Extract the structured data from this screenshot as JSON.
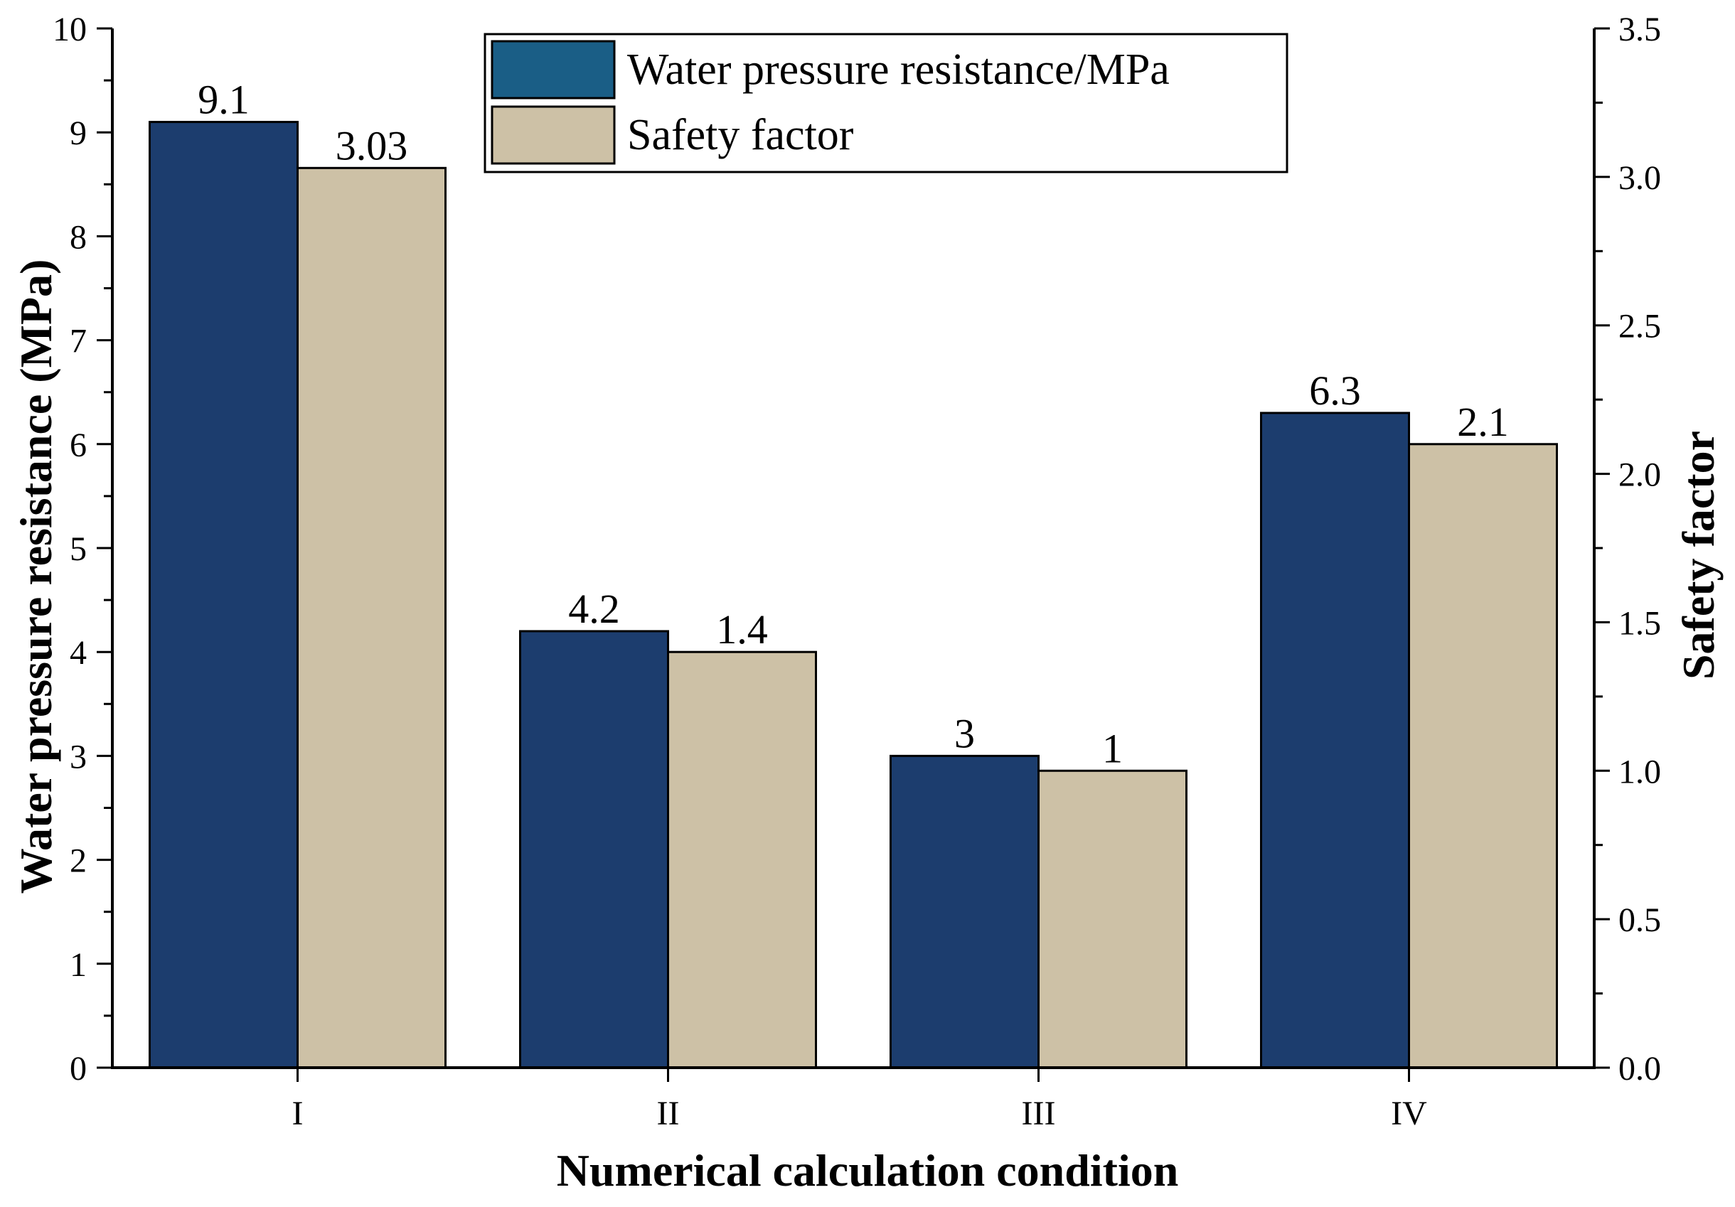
{
  "chart_data": {
    "type": "bar",
    "categories": [
      "I",
      "II",
      "III",
      "IV"
    ],
    "series": [
      {
        "name": "Water pressure resistance/MPa",
        "axis": "left",
        "color": "#1c3d6e",
        "values": [
          9.1,
          4.2,
          3.0,
          6.3
        ],
        "labels": [
          "9.1",
          "4.2",
          "3",
          "6.3"
        ]
      },
      {
        "name": "Safety factor",
        "axis": "right",
        "color": "#cdc1a6",
        "values": [
          3.03,
          1.4,
          1.0,
          2.1
        ],
        "labels": [
          "3.03",
          "1.4",
          "1",
          "2.1"
        ]
      }
    ],
    "xlabel": "Numerical calculation condition",
    "ylabel": "Water pressure resistance (MPa)",
    "y2label": "Safety factor",
    "ylim": [
      0,
      10
    ],
    "y2lim": [
      0,
      3.5
    ],
    "yticks": [
      "0",
      "1",
      "2",
      "3",
      "4",
      "5",
      "6",
      "7",
      "8",
      "9",
      "10"
    ],
    "y2ticks": [
      "0.0",
      "0.5",
      "1.0",
      "1.5",
      "2.0",
      "2.5",
      "3.0",
      "3.5"
    ],
    "legend_position": "top-center",
    "legend_swatch_colors": [
      "#1a5e86",
      "#cdc1a6"
    ],
    "grid": false
  }
}
